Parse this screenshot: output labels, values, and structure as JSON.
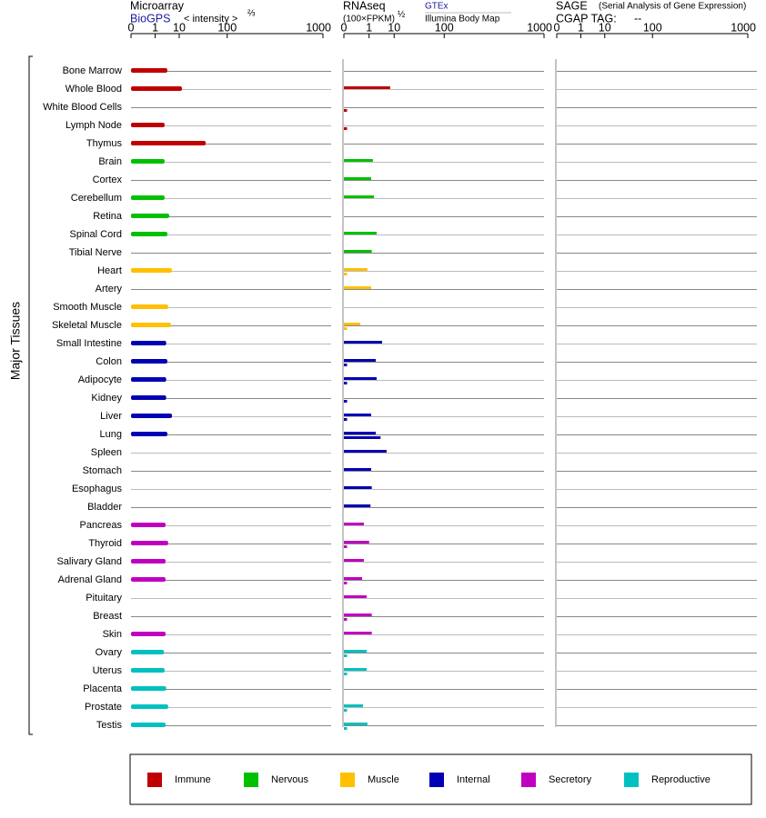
{
  "chart_data": [
    {
      "type": "bar",
      "orientation": "horizontal",
      "title": "Microarray",
      "subtitle": "BioGPS",
      "axis_label": "< intensity >",
      "axis_exponent": "⅔",
      "y_label": "Major Tissues",
      "categories": [
        "Bone Marrow",
        "Whole Blood",
        "White Blood Cells",
        "Lymph Node",
        "Thymus",
        "Brain",
        "Cortex",
        "Cerebellum",
        "Retina",
        "Spinal Cord",
        "Tibial Nerve",
        "Heart",
        "Artery",
        "Smooth Muscle",
        "Skeletal Muscle",
        "Small Intestine",
        "Colon",
        "Adipocyte",
        "Kidney",
        "Liver",
        "Lung",
        "Spleen",
        "Stomach",
        "Esophagus",
        "Bladder",
        "Pancreas",
        "Thyroid",
        "Salivary Gland",
        "Adrenal Gland",
        "Pituitary",
        "Breast",
        "Skin",
        "Ovary",
        "Uterus",
        "Placenta",
        "Prostate",
        "Testis"
      ],
      "category_groups": [
        "Immune",
        "Immune",
        "Immune",
        "Immune",
        "Immune",
        "Nervous",
        "Nervous",
        "Nervous",
        "Nervous",
        "Nervous",
        "Nervous",
        "Muscle",
        "Muscle",
        "Muscle",
        "Muscle",
        "Internal",
        "Internal",
        "Internal",
        "Internal",
        "Internal",
        "Internal",
        "Internal",
        "Internal",
        "Internal",
        "Internal",
        "Secretory",
        "Secretory",
        "Secretory",
        "Secretory",
        "Secretory",
        "Secretory",
        "Secretory",
        "Reproductive",
        "Reproductive",
        "Reproductive",
        "Reproductive",
        "Reproductive"
      ],
      "groups": [
        {
          "name": "Immune",
          "color": "#c00000"
        },
        {
          "name": "Nervous",
          "color": "#00c000"
        },
        {
          "name": "Muscle",
          "color": "#ffc000"
        },
        {
          "name": "Internal",
          "color": "#0000b4"
        },
        {
          "name": "Secretory",
          "color": "#c000c0"
        },
        {
          "name": "Reproductive",
          "color": "#00c0c0"
        }
      ],
      "xlim": [
        0,
        1000
      ],
      "xticks": [
        0,
        1,
        10,
        100,
        1000
      ],
      "series": [
        {
          "name": "BioGPS",
          "values": [
            3.9,
            12,
            null,
            3.0,
            43,
            3.0,
            null,
            3.0,
            4.6,
            3.9,
            null,
            5.8,
            null,
            4.2,
            5.3,
            3.5,
            3.9,
            3.5,
            3.5,
            5.8,
            3.9,
            null,
            null,
            null,
            null,
            3.3,
            4.2,
            3.3,
            3.3,
            null,
            null,
            3.3,
            2.8,
            3.0,
            3.5,
            4.2,
            3.3
          ]
        }
      ]
    },
    {
      "type": "bar",
      "orientation": "horizontal",
      "title": "RNAseq",
      "axis_label": "(100×FPKM)",
      "axis_exponent": "½",
      "xlim": [
        0,
        1000
      ],
      "xticks": [
        0,
        1,
        10,
        100,
        1000
      ],
      "series": [
        {
          "name": "GTEx",
          "values": [
            null,
            7.6,
            null,
            null,
            null,
            1.6,
            1.3,
            1.8,
            null,
            2.4,
            1.4,
            0.8,
            1.3,
            null,
            0.24,
            4.0,
            2.2,
            2.4,
            null,
            1.3,
            2.2,
            5.8,
            1.3,
            1.4,
            1.2,
            0.46,
            1.0,
            0.46,
            0.34,
            0.71,
            1.4,
            1.4,
            0.71,
            0.71,
            null,
            0.4,
            0.8
          ]
        },
        {
          "name": "Illumina Body Map",
          "values": [
            null,
            null,
            0.001,
            0.001,
            null,
            null,
            null,
            null,
            null,
            null,
            null,
            0.001,
            null,
            null,
            0.001,
            null,
            0.001,
            0.001,
            0.001,
            0.001,
            3.5,
            null,
            null,
            null,
            null,
            null,
            0.001,
            null,
            0.001,
            null,
            0.001,
            null,
            0.001,
            0.001,
            null,
            0.001,
            0.001
          ]
        }
      ]
    },
    {
      "type": "bar",
      "orientation": "horizontal",
      "title": "SAGE",
      "subtitle": "(Serial Analysis of Gene Expression)",
      "tag_label": "CGAP TAG:",
      "tag_value": "--",
      "xlim": [
        0,
        1000
      ],
      "xticks": [
        0,
        1,
        10,
        100,
        1000
      ],
      "series": []
    }
  ]
}
